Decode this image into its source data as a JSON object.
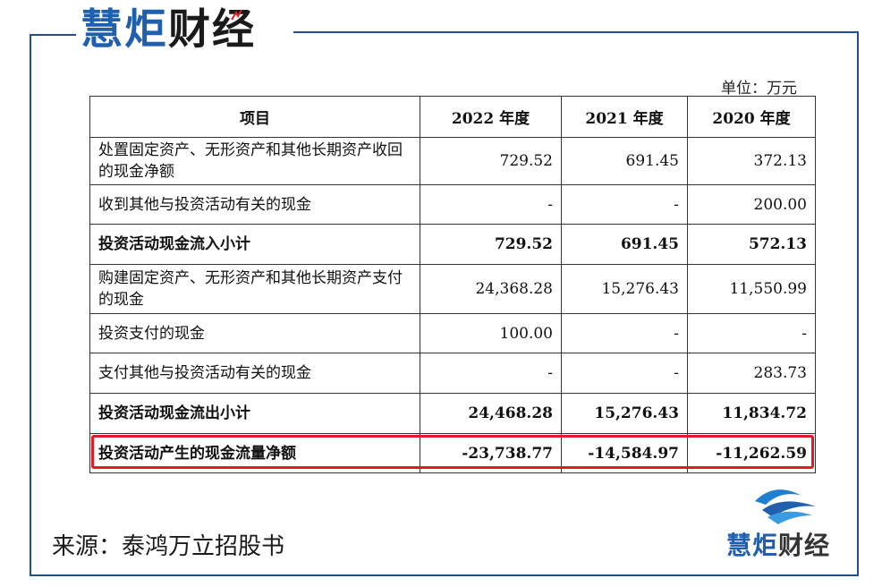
{
  "brand": {
    "name_part1": "慧炬",
    "name_part2": "财经"
  },
  "unit_label": "单位：万元",
  "table": {
    "headers": [
      "项目",
      "2022 年度",
      "2021 年度",
      "2020 年度"
    ],
    "rows": [
      {
        "label": "处置固定资产、无形资产和其他长期资产收回的现金净额",
        "v2022": "729.52",
        "v2021": "691.45",
        "v2020": "372.13",
        "bold": false
      },
      {
        "label": "收到其他与投资活动有关的现金",
        "v2022": "-",
        "v2021": "-",
        "v2020": "200.00",
        "bold": false
      },
      {
        "label": "投资活动现金流入小计",
        "v2022": "729.52",
        "v2021": "691.45",
        "v2020": "572.13",
        "bold": true
      },
      {
        "label": "购建固定资产、无形资产和其他长期资产支付的现金",
        "v2022": "24,368.28",
        "v2021": "15,276.43",
        "v2020": "11,550.99",
        "bold": false
      },
      {
        "label": "投资支付的现金",
        "v2022": "100.00",
        "v2021": "-",
        "v2020": "-",
        "bold": false
      },
      {
        "label": "支付其他与投资活动有关的现金",
        "v2022": "-",
        "v2021": "-",
        "v2020": "283.73",
        "bold": false
      },
      {
        "label": "投资活动现金流出小计",
        "v2022": "24,468.28",
        "v2021": "15,276.43",
        "v2020": "11,834.72",
        "bold": true
      },
      {
        "label": "投资活动产生的现金流量净额",
        "v2022": "-23,738.77",
        "v2021": "-14,584.97",
        "v2020": "-11,262.59",
        "bold": true
      }
    ]
  },
  "source": "来源：泰鸿万立招股书",
  "colors": {
    "brand_blue": "#1f5fae",
    "frame": "#1f4f8f",
    "highlight_red": "#e11b22"
  },
  "icons": {
    "logo_mark": "wave-logo-icon",
    "spark": "spark-icon"
  }
}
